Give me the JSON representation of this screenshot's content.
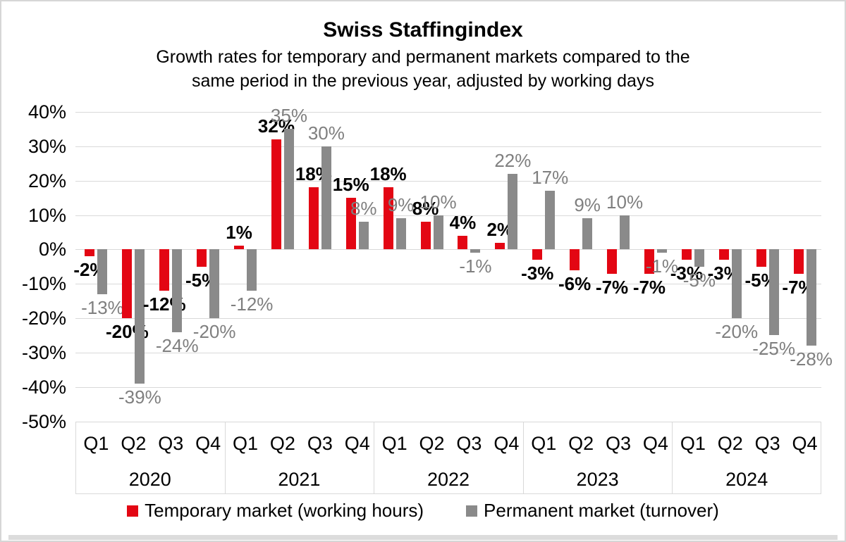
{
  "title": "Swiss Staffingindex",
  "subtitle_line1": "Growth rates for temporary and permanent markets compared to the",
  "subtitle_line2": "same period in the previous year, adjusted by working days",
  "chart_data": {
    "type": "bar",
    "title": "Swiss Staffingindex",
    "years": [
      "2020",
      "2021",
      "2022",
      "2023",
      "2024"
    ],
    "quarter_labels": [
      "Q1",
      "Q2",
      "Q3",
      "Q4"
    ],
    "categories": [
      "2020 Q1",
      "2020 Q2",
      "2020 Q3",
      "2020 Q4",
      "2021 Q1",
      "2021 Q2",
      "2021 Q3",
      "2021 Q4",
      "2022 Q1",
      "2022 Q2",
      "2022 Q3",
      "2022 Q4",
      "2023 Q1",
      "2023 Q2",
      "2023 Q3",
      "2023 Q4",
      "2024 Q1",
      "2024 Q2",
      "2024 Q3",
      "2024 Q4"
    ],
    "series": [
      {
        "name": "Temporary market (working hours)",
        "color": "#e30613",
        "label_color": "#000000",
        "label_bold": true,
        "values": [
          -2,
          -20,
          -12,
          -5,
          1,
          32,
          18,
          15,
          18,
          8,
          4,
          2,
          -3,
          -6,
          -7,
          -7,
          -3,
          -3,
          -5,
          -7
        ]
      },
      {
        "name": "Permanent market (turnover)",
        "color": "#8a8a8a",
        "label_color": "#7f7f7f",
        "label_bold": false,
        "values": [
          -13,
          -39,
          -24,
          -20,
          -12,
          35,
          30,
          8,
          9,
          10,
          -1,
          22,
          17,
          9,
          10,
          -1,
          -5,
          -20,
          -25,
          -28
        ]
      }
    ],
    "label_suffix": "%",
    "ylim": [
      -50,
      40
    ],
    "ytick_step": 10,
    "ytick_labels": [
      "40%",
      "30%",
      "20%",
      "10%",
      "0%",
      "-10%",
      "-20%",
      "-30%",
      "-40%",
      "-50%"
    ],
    "grid": true,
    "legend_position": "bottom",
    "colors": {
      "grid_line": "#d9d9d9",
      "axis_border": "#d9d9d9",
      "page_border": "#d6d6d6",
      "bottom_strip": "#dcdcdc"
    }
  }
}
